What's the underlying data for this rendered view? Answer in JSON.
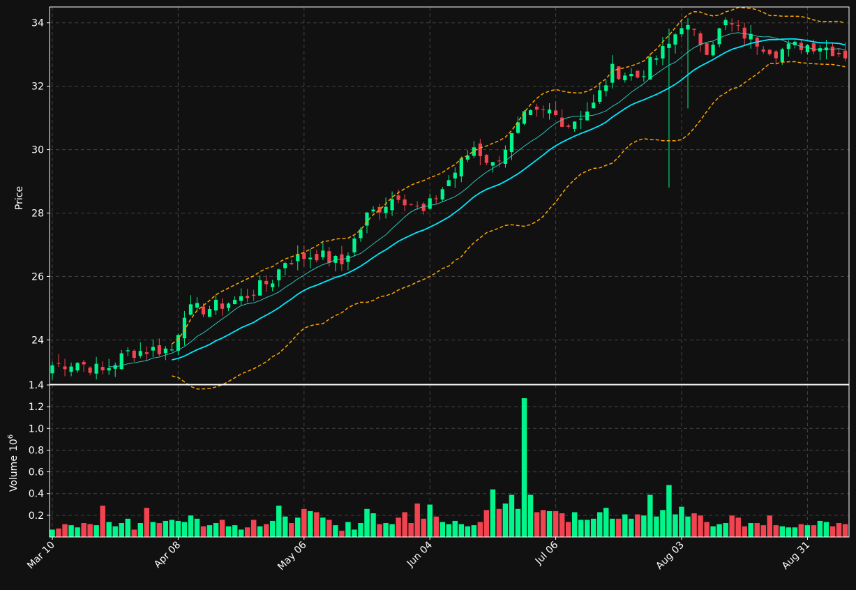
{
  "chart_data": {
    "type": "candlestick",
    "theme": {
      "background": "#111111",
      "axis": "#ffffff",
      "grid": "#444444",
      "up_color": "#00f58a",
      "down_color": "#f24350",
      "ma_slow_color": "#00eaff",
      "ma_fast_color": "#2fd6c8",
      "band_color": "#ffa500"
    },
    "price_panel": {
      "ylabel": "Price",
      "ylim": [
        22.6,
        34.5
      ],
      "yticks": [
        "24",
        "26",
        "28",
        "30",
        "32",
        "34"
      ],
      "grid": true,
      "overlays": [
        "Bollinger upper band (dashed)",
        "Bollinger lower band (dashed)",
        "fast moving average",
        "slow moving average"
      ]
    },
    "volume_panel": {
      "ylabel": "Volume",
      "yscale_label": "10",
      "yscale_exponent": "6",
      "ylim": [
        0.0,
        1.4
      ],
      "yticks": [
        "0.2",
        "0.4",
        "0.6",
        "0.8",
        "1.0",
        "1.2",
        "1.4"
      ],
      "grid": true
    },
    "x_axis": {
      "tick_labels": [
        "Mar 10",
        "Apr 08",
        "May 06",
        "Jun 04",
        "Jul 06",
        "Aug 03",
        "Aug 31"
      ],
      "tick_bar_index": [
        0,
        20,
        40,
        60,
        80,
        100,
        120
      ]
    },
    "n_bars": 127,
    "close_anchors": [
      [
        0,
        23.2
      ],
      [
        4,
        23.3
      ],
      [
        8,
        23.0
      ],
      [
        12,
        23.6
      ],
      [
        16,
        23.7
      ],
      [
        19,
        23.7
      ],
      [
        21,
        24.9
      ],
      [
        25,
        25.0
      ],
      [
        30,
        25.3
      ],
      [
        35,
        25.9
      ],
      [
        37,
        26.5
      ],
      [
        42,
        26.7
      ],
      [
        46,
        26.4
      ],
      [
        50,
        27.9
      ],
      [
        55,
        28.6
      ],
      [
        59,
        28.0
      ],
      [
        64,
        29.3
      ],
      [
        67,
        30.1
      ],
      [
        70,
        29.5
      ],
      [
        75,
        31.0
      ],
      [
        79,
        31.2
      ],
      [
        82,
        30.8
      ],
      [
        86,
        31.4
      ],
      [
        89,
        32.5
      ],
      [
        93,
        32.3
      ],
      [
        98,
        33.3
      ],
      [
        100,
        34.0
      ],
      [
        104,
        33.2
      ],
      [
        107,
        34.0
      ],
      [
        111,
        33.5
      ],
      [
        115,
        33.1
      ],
      [
        119,
        33.3
      ],
      [
        122,
        33.3
      ],
      [
        126,
        33.0
      ]
    ],
    "volume_values_millions": [
      0.07,
      0.08,
      0.12,
      0.11,
      0.09,
      0.13,
      0.12,
      0.11,
      0.29,
      0.14,
      0.1,
      0.13,
      0.17,
      0.07,
      0.13,
      0.27,
      0.14,
      0.13,
      0.15,
      0.16,
      0.15,
      0.14,
      0.2,
      0.17,
      0.1,
      0.11,
      0.13,
      0.16,
      0.1,
      0.11,
      0.07,
      0.09,
      0.16,
      0.1,
      0.12,
      0.15,
      0.29,
      0.19,
      0.13,
      0.18,
      0.26,
      0.24,
      0.23,
      0.18,
      0.16,
      0.11,
      0.06,
      0.14,
      0.07,
      0.13,
      0.26,
      0.22,
      0.12,
      0.13,
      0.12,
      0.18,
      0.23,
      0.13,
      0.31,
      0.17,
      0.3,
      0.19,
      0.14,
      0.12,
      0.15,
      0.12,
      0.1,
      0.11,
      0.14,
      0.25,
      0.44,
      0.26,
      0.31,
      0.39,
      0.26,
      1.28,
      0.39,
      0.23,
      0.25,
      0.24,
      0.24,
      0.22,
      0.14,
      0.23,
      0.16,
      0.16,
      0.17,
      0.23,
      0.27,
      0.17,
      0.17,
      0.21,
      0.17,
      0.21,
      0.2,
      0.39,
      0.19,
      0.25,
      0.48,
      0.21,
      0.28,
      0.19,
      0.22,
      0.2,
      0.14,
      0.1,
      0.12,
      0.13,
      0.2,
      0.18,
      0.1,
      0.13,
      0.13,
      0.11,
      0.2,
      0.11,
      0.1,
      0.09,
      0.09,
      0.12,
      0.11,
      0.11,
      0.15,
      0.14,
      0.1,
      0.13,
      0.12
    ]
  }
}
